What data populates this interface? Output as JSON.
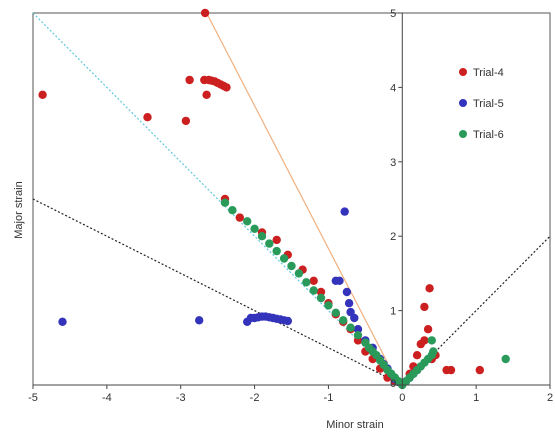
{
  "chart_data": {
    "type": "scatter",
    "xlabel": "Minor strain",
    "ylabel": "Major strain",
    "xlim": [
      -5,
      2
    ],
    "ylim": [
      0,
      5
    ],
    "x_ticks": [
      -5,
      -4,
      -3,
      -2,
      -1,
      0,
      1,
      2
    ],
    "y_ticks": [
      1,
      2,
      3,
      4,
      5
    ],
    "x_tick_labels": [
      "-5",
      "-4",
      "-3",
      "-2",
      "-1",
      "0",
      "1",
      "2"
    ],
    "y_tick_labels": [
      "1",
      "2",
      "3",
      "4",
      "5"
    ],
    "zero_label": "0",
    "grid": false,
    "legend_position": "top-right",
    "colors": {
      "trial4": "#cc1f1f",
      "trial5": "#3333bb",
      "trial6": "#2a9a5a",
      "cyan_line": "#5fc8e0",
      "orange_line": "#f0b080",
      "black_dotted": "#222222"
    },
    "reference_lines": [
      {
        "style": "dotted",
        "color": "#5fc8e0",
        "points": [
          [
            -5,
            5
          ],
          [
            0,
            0
          ]
        ]
      },
      {
        "style": "solid",
        "color": "#f0b080",
        "points": [
          [
            -2.65,
            5
          ],
          [
            -0.2,
            0.3
          ]
        ]
      },
      {
        "style": "dotted",
        "color": "#222222",
        "points": [
          [
            -5,
            2.5
          ],
          [
            0,
            0
          ],
          [
            2,
            2
          ]
        ]
      }
    ],
    "series": [
      {
        "name": "Trial-4",
        "color": "#cc1f1f",
        "points": [
          [
            -2.67,
            5.0
          ],
          [
            -4.87,
            3.9
          ],
          [
            -3.45,
            3.6
          ],
          [
            -2.93,
            3.55
          ],
          [
            -2.88,
            4.1
          ],
          [
            -2.68,
            4.1
          ],
          [
            -2.62,
            4.1
          ],
          [
            -2.58,
            4.09
          ],
          [
            -2.54,
            4.08
          ],
          [
            -2.5,
            4.06
          ],
          [
            -2.46,
            4.04
          ],
          [
            -2.42,
            4.02
          ],
          [
            -2.38,
            4.0
          ],
          [
            -2.65,
            3.9
          ],
          [
            -2.4,
            2.5
          ],
          [
            -2.2,
            2.25
          ],
          [
            -1.9,
            2.05
          ],
          [
            -1.7,
            1.95
          ],
          [
            -1.55,
            1.75
          ],
          [
            -1.35,
            1.55
          ],
          [
            -1.2,
            1.4
          ],
          [
            -1.1,
            1.25
          ],
          [
            -1.0,
            1.1
          ],
          [
            -0.9,
            0.95
          ],
          [
            -0.8,
            0.85
          ],
          [
            -0.7,
            0.75
          ],
          [
            -0.6,
            0.6
          ],
          [
            -0.5,
            0.45
          ],
          [
            -0.4,
            0.35
          ],
          [
            -0.3,
            0.22
          ],
          [
            -0.2,
            0.1
          ],
          [
            -0.1,
            0.05
          ],
          [
            0.1,
            0.15
          ],
          [
            0.15,
            0.25
          ],
          [
            0.25,
            0.55
          ],
          [
            0.3,
            0.6
          ],
          [
            0.35,
            0.75
          ],
          [
            0.3,
            1.05
          ],
          [
            0.37,
            1.3
          ],
          [
            0.2,
            0.4
          ],
          [
            0.4,
            0.35
          ],
          [
            0.45,
            0.4
          ],
          [
            0.6,
            0.2
          ],
          [
            0.66,
            0.2
          ],
          [
            1.05,
            0.2
          ]
        ]
      },
      {
        "name": "Trial-5",
        "color": "#3333bb",
        "points": [
          [
            -4.6,
            0.85
          ],
          [
            -2.75,
            0.87
          ],
          [
            -0.78,
            2.33
          ],
          [
            -2.1,
            0.85
          ],
          [
            -2.05,
            0.9
          ],
          [
            -2.0,
            0.9
          ],
          [
            -1.95,
            0.91
          ],
          [
            -1.9,
            0.92
          ],
          [
            -1.85,
            0.92
          ],
          [
            -1.8,
            0.91
          ],
          [
            -1.75,
            0.9
          ],
          [
            -1.7,
            0.89
          ],
          [
            -1.65,
            0.88
          ],
          [
            -1.6,
            0.87
          ],
          [
            -1.55,
            0.86
          ],
          [
            -0.9,
            1.4
          ],
          [
            -0.85,
            1.4
          ],
          [
            -0.75,
            1.25
          ],
          [
            -0.72,
            1.1
          ],
          [
            -0.7,
            0.98
          ],
          [
            -0.65,
            0.9
          ],
          [
            -0.6,
            0.75
          ],
          [
            -0.5,
            0.6
          ],
          [
            -0.4,
            0.5
          ],
          [
            -0.3,
            0.35
          ],
          [
            -0.25,
            0.28
          ],
          [
            -0.2,
            0.22
          ],
          [
            -0.15,
            0.15
          ],
          [
            -0.1,
            0.08
          ],
          [
            -0.05,
            0.04
          ],
          [
            0.05,
            0.05
          ],
          [
            0.1,
            0.1
          ],
          [
            0.15,
            0.15
          ],
          [
            0.2,
            0.2
          ]
        ]
      },
      {
        "name": "Trial-6",
        "color": "#2a9a5a",
        "points": [
          [
            -2.4,
            2.45
          ],
          [
            -2.3,
            2.35
          ],
          [
            -2.1,
            2.2
          ],
          [
            -2.0,
            2.1
          ],
          [
            -1.9,
            2.0
          ],
          [
            -1.8,
            1.9
          ],
          [
            -1.7,
            1.8
          ],
          [
            -1.6,
            1.7
          ],
          [
            -1.5,
            1.6
          ],
          [
            -1.4,
            1.5
          ],
          [
            -1.3,
            1.38
          ],
          [
            -1.2,
            1.27
          ],
          [
            -1.1,
            1.17
          ],
          [
            -1.0,
            1.07
          ],
          [
            -0.9,
            0.97
          ],
          [
            -0.8,
            0.87
          ],
          [
            -0.7,
            0.77
          ],
          [
            -0.6,
            0.67
          ],
          [
            -0.5,
            0.57
          ],
          [
            -0.45,
            0.5
          ],
          [
            -0.4,
            0.45
          ],
          [
            -0.35,
            0.4
          ],
          [
            -0.3,
            0.33
          ],
          [
            -0.25,
            0.27
          ],
          [
            -0.2,
            0.2
          ],
          [
            -0.15,
            0.15
          ],
          [
            -0.1,
            0.1
          ],
          [
            -0.05,
            0.05
          ],
          [
            0.0,
            0.0
          ],
          [
            0.05,
            0.05
          ],
          [
            0.1,
            0.1
          ],
          [
            0.15,
            0.15
          ],
          [
            0.2,
            0.2
          ],
          [
            0.25,
            0.25
          ],
          [
            0.3,
            0.3
          ],
          [
            0.35,
            0.35
          ],
          [
            0.4,
            0.4
          ],
          [
            0.42,
            0.45
          ],
          [
            0.4,
            0.6
          ],
          [
            1.4,
            0.35
          ]
        ]
      }
    ]
  }
}
